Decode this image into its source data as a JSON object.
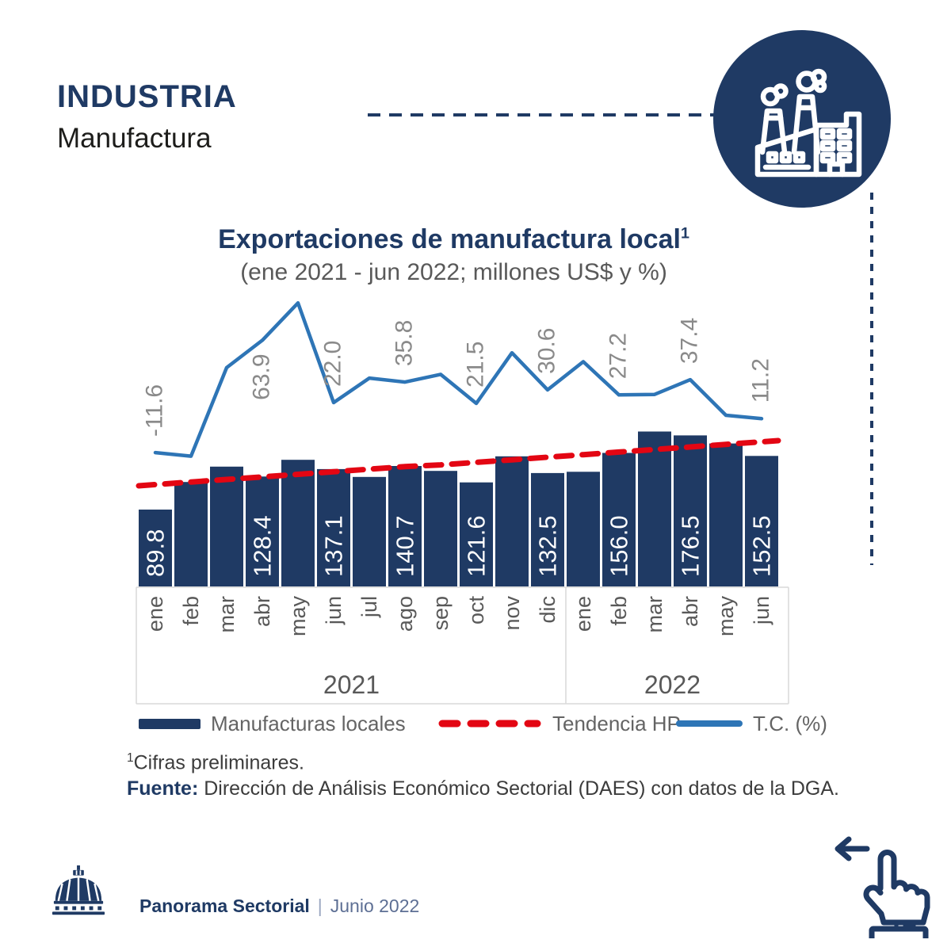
{
  "header": {
    "title": "INDUSTRIA",
    "subtitle": "Manufactura"
  },
  "hero": {
    "icon": "factory-icon"
  },
  "chart": {
    "title": "Exportaciones de manufactura local",
    "title_footnote_mark": "1",
    "subtitle": "(ene 2021 - jun 2022; millones US$ y %)"
  },
  "chart_data": {
    "type": "bar",
    "title": "Exportaciones de manufactura local",
    "subtitle": "(ene 2021 - jun 2022; millones US$ y %)",
    "categories": [
      "ene",
      "feb",
      "mar",
      "abr",
      "may",
      "jun",
      "jul",
      "ago",
      "sep",
      "oct",
      "nov",
      "dic",
      "ene",
      "feb",
      "mar",
      "abr",
      "may",
      "jun"
    ],
    "years": [
      {
        "label": "2021",
        "from": 0,
        "to": 11
      },
      {
        "label": "2022",
        "from": 12,
        "to": 17
      }
    ],
    "series": [
      {
        "name": "Manufacturas locales",
        "type": "bar",
        "unit": "millones US$",
        "color": "#1f3a64",
        "values": [
          89.8,
          122,
          140,
          128.4,
          148,
          137.1,
          128,
          140.7,
          135,
          121.6,
          152,
          132.5,
          134,
          156.0,
          181,
          176.5,
          167,
          152.5
        ],
        "value_labels": {
          "0": "89.8",
          "3": "128.4",
          "5": "137.1",
          "7": "140.7",
          "9": "121.6",
          "11": "132.5",
          "13": "156.0",
          "15": "176.5",
          "17": "152.5"
        }
      },
      {
        "name": "Tendencia HP",
        "type": "line-dashed",
        "unit": "millones US$",
        "color": "#e30613",
        "values": [
          119,
          122,
          125,
          128,
          131,
          134,
          137,
          140,
          142,
          145,
          148,
          151,
          154,
          157,
          160,
          163,
          166,
          169
        ]
      },
      {
        "name": "T.C. (%)",
        "type": "line",
        "unit": "%",
        "color": "#2e75b6",
        "values": [
          -11.6,
          -14,
          45.5,
          63.9,
          89,
          22.0,
          38.5,
          35.8,
          41,
          21.5,
          55.5,
          30.6,
          49.5,
          27.2,
          27.5,
          37.4,
          13.5,
          11.2
        ],
        "value_labels": {
          "0": "-11.6",
          "3": "63.9",
          "5": "22.0",
          "7": "35.8",
          "9": "21.5",
          "11": "30.6",
          "13": "27.2",
          "15": "37.4",
          "17": "11.2"
        }
      }
    ],
    "legend_position": "bottom",
    "grid": false
  },
  "legend": [
    {
      "label": "Manufacturas locales",
      "swatch": "bar",
      "color": "#1f3a64"
    },
    {
      "label": "Tendencia HP",
      "swatch": "dashed-line",
      "color": "#e30613"
    },
    {
      "label": "T.C. (%)",
      "swatch": "line",
      "color": "#2e75b6"
    }
  ],
  "footnotes": {
    "note_mark": "1",
    "note": "Cifras preliminares.",
    "source_label": "Fuente:",
    "source": "Dirección de Análisis Económico Sectorial (DAES) con datos de la DGA."
  },
  "footer": {
    "brand": "Panorama Sectorial",
    "separator": "|",
    "issue": "Junio 2022"
  },
  "colors": {
    "navy": "#1f3a64",
    "blue": "#2e75b6",
    "red": "#e30613",
    "gray_text": "#595959",
    "line_label_gray": "#8a8a8a",
    "bar_label_white": "#ffffff",
    "axis_gray": "#d9d9d9"
  }
}
